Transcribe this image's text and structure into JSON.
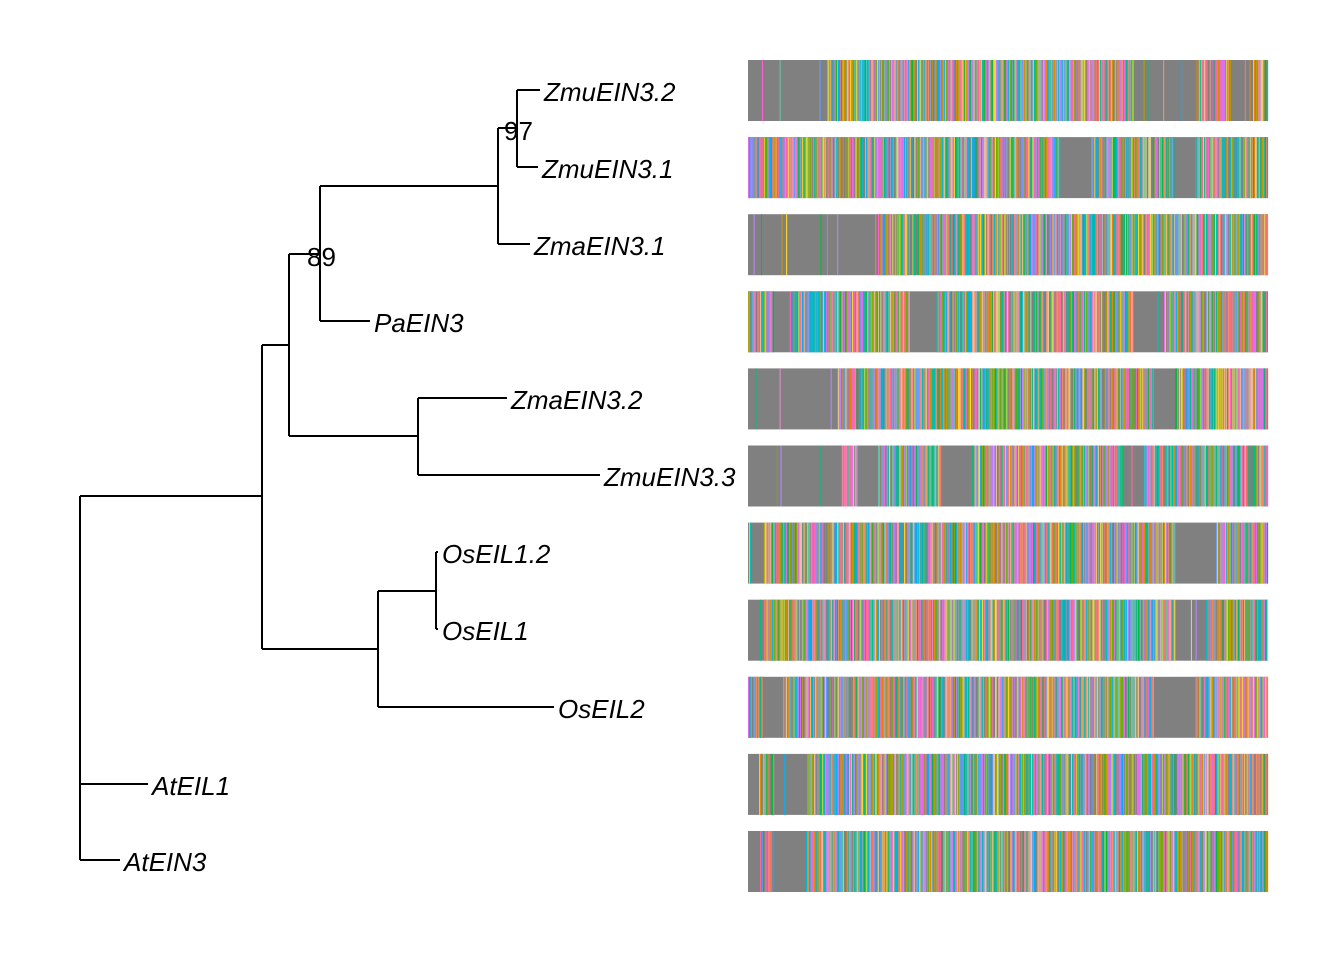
{
  "tree": {
    "taxa": [
      "ZmuEIN3.2",
      "ZmuEIN3.1",
      "ZmaEIN3.1",
      "PaEIN3",
      "ZmaEIN3.2",
      "ZmuEIN3.3",
      "OsEIL1.2",
      "OsEIL1",
      "OsEIL2",
      "AtEIL1",
      "AtEIN3"
    ],
    "bootstrap": [
      "97",
      "89"
    ]
  },
  "alignment": {
    "gap_color": "#808080",
    "residue_palette": [
      "#F8766D",
      "#E58700",
      "#C99800",
      "#A3A500",
      "#6BB100",
      "#00BA38",
      "#00BF7D",
      "#00C0AF",
      "#00BCD8",
      "#00B0F6",
      "#619CFF",
      "#B983FF",
      "#E76BF3",
      "#FD61D1",
      "#FF67A4",
      "#FC8D62",
      "#8DA0CB",
      "#E78AC3",
      "#A6D854",
      "#FFD92F",
      "#E5C494",
      "#66C2A5"
    ],
    "rows": [
      {
        "taxon": "ZmuEIN3.2",
        "gap_regions": [
          [
            0.0,
            0.15
          ],
          [
            0.74,
            0.86
          ],
          [
            0.93,
            0.97
          ]
        ]
      },
      {
        "taxon": "ZmuEIN3.1",
        "gap_regions": [
          [
            0.6,
            0.66
          ],
          [
            0.82,
            0.86
          ]
        ]
      },
      {
        "taxon": "ZmaEIN3.1",
        "gap_regions": [
          [
            0.0,
            0.25
          ]
        ]
      },
      {
        "taxon": "PaEIN3",
        "gap_regions": [
          [
            0.05,
            0.08
          ],
          [
            0.31,
            0.36
          ],
          [
            0.74,
            0.8
          ]
        ]
      },
      {
        "taxon": "ZmaEIN3.2",
        "gap_regions": [
          [
            0.0,
            0.17
          ],
          [
            0.78,
            0.82
          ]
        ]
      },
      {
        "taxon": "ZmuEIN3.3",
        "gap_regions": [
          [
            0.0,
            0.18
          ],
          [
            0.21,
            0.25
          ],
          [
            0.37,
            0.43
          ],
          [
            0.72,
            0.76
          ]
        ]
      },
      {
        "taxon": "OsEIL1.2",
        "gap_regions": [
          [
            0.0,
            0.03
          ],
          [
            0.82,
            0.9
          ]
        ]
      },
      {
        "taxon": "OsEIL1",
        "gap_regions": [
          [
            0.0,
            0.03
          ],
          [
            0.82,
            0.88
          ]
        ]
      },
      {
        "taxon": "OsEIL2",
        "gap_regions": [
          [
            0.03,
            0.07
          ],
          [
            0.78,
            0.86
          ]
        ]
      },
      {
        "taxon": "AtEIL1",
        "gap_regions": [
          [
            0.0,
            0.02
          ],
          [
            0.05,
            0.11
          ]
        ]
      },
      {
        "taxon": "AtEIN3",
        "gap_regions": [
          [
            0.0,
            0.02
          ],
          [
            0.05,
            0.11
          ]
        ]
      }
    ]
  }
}
